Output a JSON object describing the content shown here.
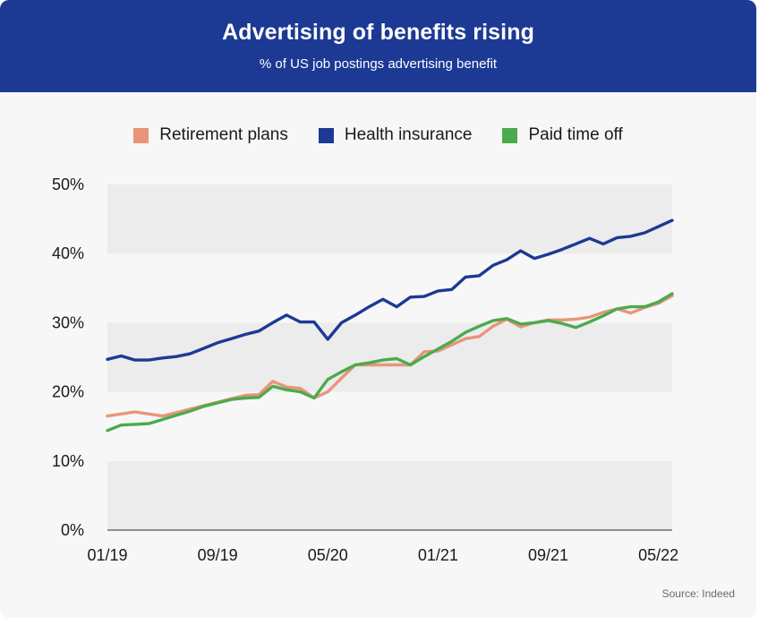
{
  "header": {
    "title": "Advertising of benefits rising",
    "subtitle": "% of US job postings advertising benefit"
  },
  "source": "Source: Indeed",
  "colors": {
    "header_bg": "#1c3a94",
    "retirement": "#e8957a",
    "health": "#1c3a94",
    "pto": "#4caa4e",
    "band": "#ececec"
  },
  "chart_data": {
    "type": "line",
    "title": "Advertising of benefits rising",
    "subtitle": "% of US job postings advertising benefit",
    "xlabel": "",
    "ylabel": "",
    "ylim": [
      0,
      50
    ],
    "yticks": [
      0,
      10,
      20,
      30,
      40,
      50
    ],
    "ytick_labels": [
      "0%",
      "10%",
      "20%",
      "30%",
      "40%",
      "50%"
    ],
    "x_start": "01/19",
    "x_end": "06/22",
    "xtick_labels": [
      "01/19",
      "09/19",
      "05/20",
      "01/21",
      "09/21",
      "05/22"
    ],
    "legend_position": "top-center",
    "grid": "alternating horizontal bands",
    "x": [
      "01/19",
      "02/19",
      "03/19",
      "04/19",
      "05/19",
      "06/19",
      "07/19",
      "08/19",
      "09/19",
      "10/19",
      "11/19",
      "12/19",
      "01/20",
      "02/20",
      "03/20",
      "04/20",
      "05/20",
      "06/20",
      "07/20",
      "08/20",
      "09/20",
      "10/20",
      "11/20",
      "12/20",
      "01/21",
      "02/21",
      "03/21",
      "04/21",
      "05/21",
      "06/21",
      "07/21",
      "08/21",
      "09/21",
      "10/21",
      "11/21",
      "12/21",
      "01/22",
      "02/22",
      "03/22",
      "04/22",
      "05/22",
      "06/22"
    ],
    "series": [
      {
        "name": "Retirement plans",
        "color": "#e8957a",
        "values": [
          16.5,
          16.8,
          17.1,
          16.8,
          16.5,
          17.0,
          17.5,
          18.0,
          18.5,
          19.0,
          19.5,
          19.6,
          21.5,
          20.7,
          20.5,
          19.1,
          20.0,
          22.0,
          23.9,
          23.9,
          23.9,
          23.9,
          23.9,
          25.8,
          25.9,
          26.8,
          27.7,
          28.0,
          29.5,
          30.5,
          29.4,
          30.0,
          30.4,
          30.4,
          30.5,
          30.8,
          31.5,
          32.0,
          31.4,
          32.2,
          32.8,
          33.9
        ]
      },
      {
        "name": "Health insurance",
        "color": "#1c3a94",
        "values": [
          24.7,
          25.2,
          24.6,
          24.6,
          24.9,
          25.1,
          25.5,
          26.3,
          27.1,
          27.7,
          28.3,
          28.8,
          30.0,
          31.1,
          30.1,
          30.1,
          27.6,
          30.0,
          31.1,
          32.3,
          33.4,
          32.3,
          33.7,
          33.8,
          34.6,
          34.8,
          36.6,
          36.8,
          38.3,
          39.1,
          40.4,
          39.3,
          39.9,
          40.6,
          41.4,
          42.2,
          41.4,
          42.3,
          42.5,
          43.0,
          43.9,
          44.8
        ]
      },
      {
        "name": "Paid time off",
        "color": "#4caa4e",
        "values": [
          14.4,
          15.2,
          15.3,
          15.4,
          16.0,
          16.6,
          17.2,
          17.9,
          18.4,
          18.9,
          19.1,
          19.2,
          20.8,
          20.3,
          20.0,
          19.1,
          21.8,
          22.9,
          23.9,
          24.2,
          24.6,
          24.8,
          23.9,
          25.1,
          26.2,
          27.3,
          28.6,
          29.5,
          30.3,
          30.6,
          29.8,
          30.0,
          30.3,
          29.9,
          29.3,
          30.1,
          31.0,
          32.0,
          32.3,
          32.3,
          33.0,
          34.2
        ]
      }
    ]
  }
}
